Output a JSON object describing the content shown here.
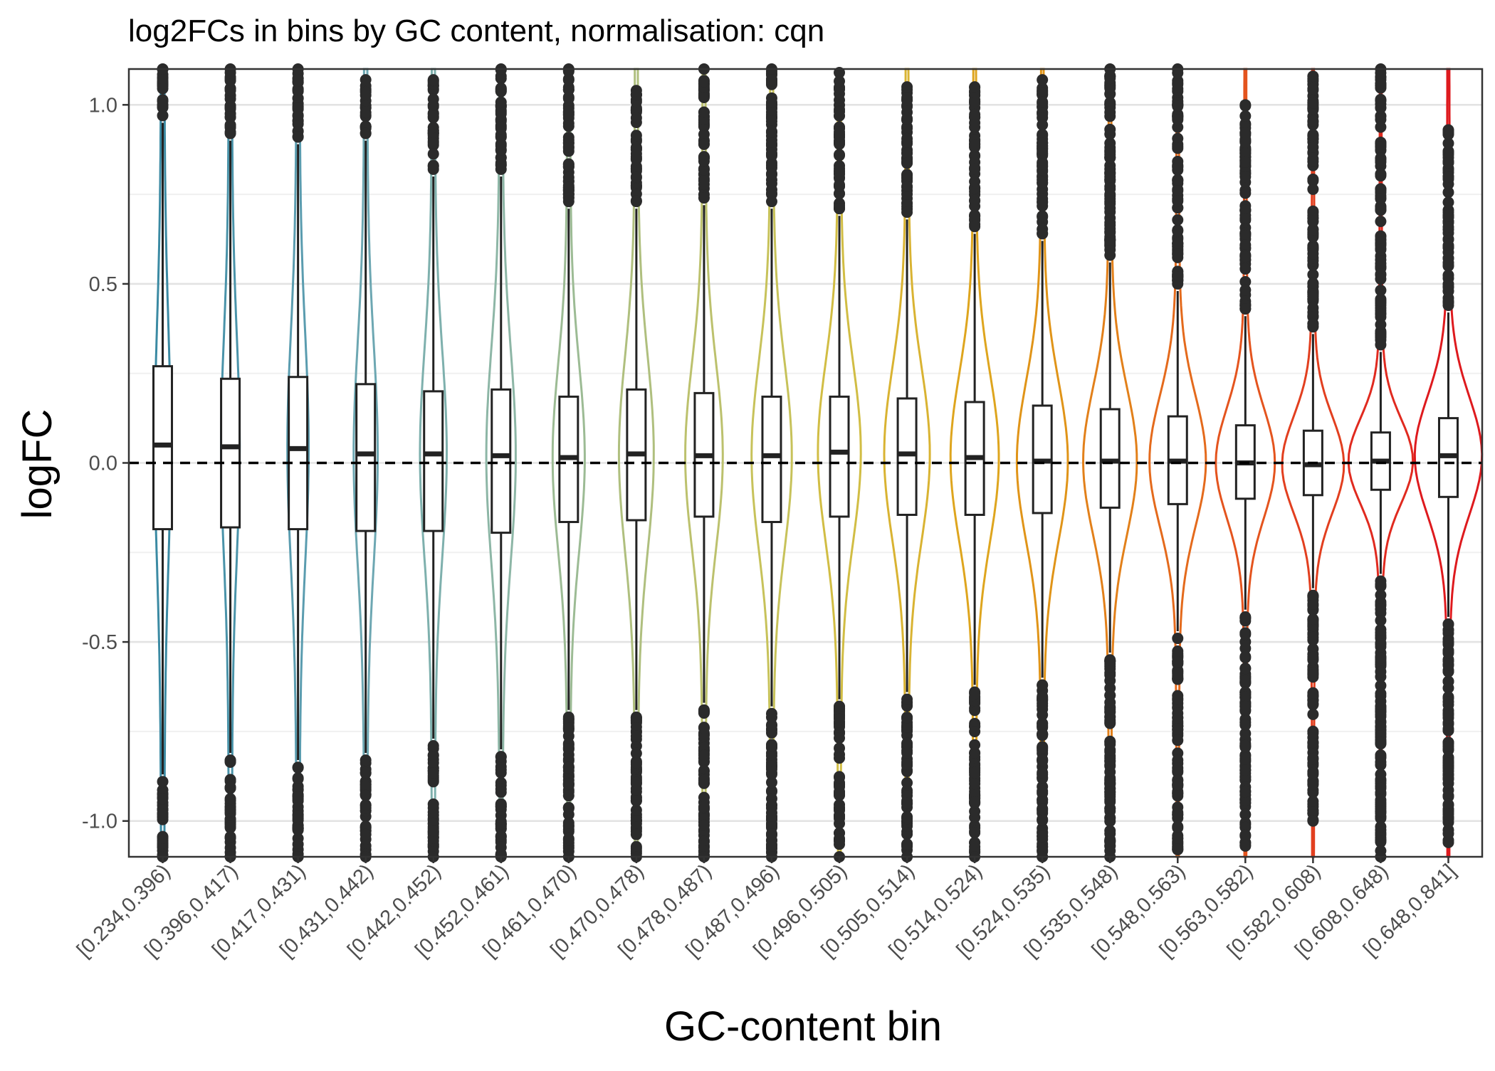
{
  "chart_data": {
    "type": "violin",
    "title": "log2FCs in bins by GC content, normalisation: cqn",
    "xlabel": "GC-content bin",
    "ylabel": "logFC",
    "ylim": [
      -1.1,
      1.1
    ],
    "yticks": [
      -1.0,
      -0.5,
      0.0,
      0.5,
      1.0
    ],
    "ytick_labels": [
      "-1.0",
      "-0.5",
      "0.0",
      "0.5",
      "1.0"
    ],
    "reference_line": {
      "y": 0,
      "style": "dashed",
      "color": "#000000"
    },
    "grid": true,
    "legend": "none",
    "categories": [
      "[0.234,0.396)",
      "[0.396,0.417)",
      "[0.417,0.431)",
      "[0.431,0.442)",
      "[0.442,0.452)",
      "[0.452,0.461)",
      "[0.461,0.470)",
      "[0.470,0.478)",
      "[0.478,0.487)",
      "[0.487,0.496)",
      "[0.496,0.505)",
      "[0.505,0.514)",
      "[0.514,0.524)",
      "[0.524,0.535)",
      "[0.535,0.548)",
      "[0.548,0.563)",
      "[0.563,0.582)",
      "[0.582,0.608)",
      "[0.608,0.648)",
      "[0.648,0.841]"
    ],
    "colors": [
      "#3b8aa3",
      "#4a93a9",
      "#5a9caf",
      "#6da7b2",
      "#7eb0ad",
      "#8db6a6",
      "#9cbb94",
      "#afbf7e",
      "#bcc16d",
      "#c7c25a",
      "#d1bd44",
      "#d9b332",
      "#dea51e",
      "#e09418",
      "#e2801a",
      "#e46a1c",
      "#e4541e",
      "#e23f1f",
      "#e02a1f",
      "#de1a1e"
    ],
    "medians": [
      0.05,
      0.045,
      0.04,
      0.025,
      0.025,
      0.02,
      0.015,
      0.025,
      0.02,
      0.02,
      0.03,
      0.025,
      0.015,
      0.005,
      0.005,
      0.005,
      0.0,
      -0.005,
      0.005,
      0.02
    ],
    "q1": [
      -0.185,
      -0.18,
      -0.185,
      -0.19,
      -0.19,
      -0.195,
      -0.165,
      -0.16,
      -0.15,
      -0.165,
      -0.15,
      -0.145,
      -0.145,
      -0.14,
      -0.125,
      -0.115,
      -0.1,
      -0.09,
      -0.075,
      -0.095
    ],
    "q3": [
      0.27,
      0.235,
      0.24,
      0.22,
      0.2,
      0.205,
      0.185,
      0.205,
      0.195,
      0.185,
      0.185,
      0.18,
      0.17,
      0.16,
      0.15,
      0.13,
      0.105,
      0.09,
      0.085,
      0.125
    ],
    "whisker_low": [
      -0.87,
      -0.81,
      -0.83,
      -0.81,
      -0.77,
      -0.8,
      -0.69,
      -0.69,
      -0.67,
      -0.68,
      -0.66,
      -0.64,
      -0.62,
      -0.6,
      -0.53,
      -0.47,
      -0.41,
      -0.35,
      -0.31,
      -0.43
    ],
    "whisker_high": [
      0.95,
      0.9,
      0.89,
      0.9,
      0.8,
      0.8,
      0.71,
      0.71,
      0.72,
      0.71,
      0.69,
      0.68,
      0.64,
      0.62,
      0.56,
      0.48,
      0.41,
      0.36,
      0.31,
      0.42
    ],
    "outliers_low_min": [
      -1.1,
      -1.1,
      -1.1,
      -1.1,
      -1.1,
      -1.1,
      -1.1,
      -1.1,
      -1.1,
      -1.1,
      -1.1,
      -1.1,
      -1.1,
      -1.1,
      -1.1,
      -1.08,
      -1.07,
      -1.0,
      -1.1,
      -1.06
    ],
    "outliers_high_max": [
      1.1,
      1.1,
      1.1,
      1.07,
      1.07,
      1.1,
      1.1,
      1.04,
      1.1,
      1.1,
      1.09,
      1.05,
      1.05,
      1.07,
      1.1,
      1.1,
      1.0,
      1.08,
      1.1,
      0.93
    ]
  }
}
